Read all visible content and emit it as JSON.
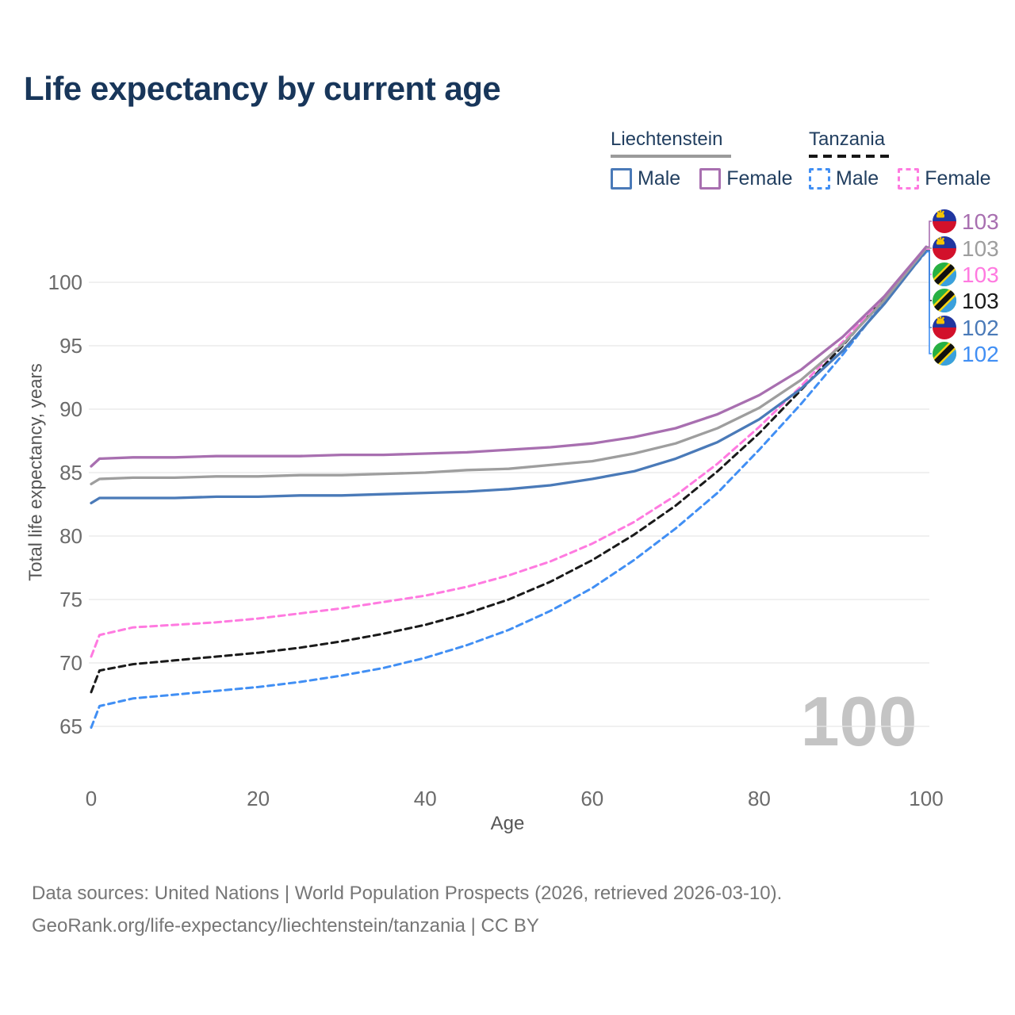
{
  "title": "Life expectancy by current age",
  "legend": {
    "groups": [
      {
        "country": "Liechtenstein",
        "line_style": "solid",
        "items": [
          {
            "label": "Male",
            "color": "#4a7ab8",
            "dashed": false
          },
          {
            "label": "Female",
            "color": "#a86fb0",
            "dashed": false
          }
        ]
      },
      {
        "country": "Tanzania",
        "line_style": "dashed",
        "items": [
          {
            "label": "Male",
            "color": "#418ff4",
            "dashed": true
          },
          {
            "label": "Female",
            "color": "#ff7ae0",
            "dashed": true
          }
        ]
      }
    ]
  },
  "chart_data": {
    "type": "line",
    "title": "Life expectancy by current age",
    "xlabel": "Age",
    "ylabel": "Total life expectancy, years",
    "xlim": [
      0,
      100
    ],
    "ylim": [
      63,
      104
    ],
    "x_ticks": [
      0,
      20,
      40,
      60,
      80,
      100
    ],
    "y_ticks": [
      65,
      70,
      75,
      80,
      85,
      90,
      95,
      100
    ],
    "grid": "horizontal-only",
    "legend_position": "top-right",
    "age_indicator": "100",
    "x": [
      0,
      1,
      5,
      10,
      15,
      20,
      25,
      30,
      35,
      40,
      45,
      50,
      55,
      60,
      65,
      70,
      75,
      80,
      85,
      90,
      95,
      100
    ],
    "series": [
      {
        "name": "Tanzania Male",
        "country": "Tanzania",
        "sex": "Male",
        "color": "#418ff4",
        "dashed": true,
        "values": [
          64.9,
          66.6,
          67.2,
          67.5,
          67.8,
          68.1,
          68.5,
          69.0,
          69.6,
          70.4,
          71.4,
          72.6,
          74.1,
          75.9,
          78.1,
          80.6,
          83.4,
          86.8,
          90.4,
          94.3,
          98.5,
          102.4
        ]
      },
      {
        "name": "Tanzania",
        "country": "Tanzania",
        "sex": "Both",
        "color": "#1a1a1a",
        "dashed": true,
        "values": [
          67.7,
          69.4,
          69.9,
          70.2,
          70.5,
          70.8,
          71.2,
          71.7,
          72.3,
          73.0,
          73.9,
          75.0,
          76.4,
          78.1,
          80.1,
          82.4,
          85.1,
          88.1,
          91.5,
          95.0,
          98.8,
          102.5
        ]
      },
      {
        "name": "Tanzania Female",
        "country": "Tanzania",
        "sex": "Female",
        "color": "#ff7ae0",
        "dashed": true,
        "values": [
          70.5,
          72.2,
          72.8,
          73.0,
          73.2,
          73.5,
          73.9,
          74.3,
          74.8,
          75.3,
          76.0,
          76.9,
          78.0,
          79.4,
          81.1,
          83.2,
          85.7,
          88.6,
          91.8,
          95.3,
          98.9,
          102.6
        ]
      },
      {
        "name": "Liechtenstein Male",
        "country": "Liechtenstein",
        "sex": "Male",
        "color": "#4a7ab8",
        "dashed": false,
        "values": [
          82.6,
          83.0,
          83.0,
          83.0,
          83.1,
          83.1,
          83.2,
          83.2,
          83.3,
          83.4,
          83.5,
          83.7,
          84.0,
          84.5,
          85.1,
          86.1,
          87.4,
          89.2,
          91.6,
          94.6,
          98.3,
          102.5
        ]
      },
      {
        "name": "Liechtenstein",
        "country": "Liechtenstein",
        "sex": "Both",
        "color": "#9e9e9e",
        "dashed": false,
        "values": [
          84.1,
          84.5,
          84.6,
          84.6,
          84.7,
          84.7,
          84.8,
          84.8,
          84.9,
          85.0,
          85.2,
          85.3,
          85.6,
          85.9,
          86.5,
          87.3,
          88.5,
          90.1,
          92.3,
          95.1,
          98.6,
          102.7
        ]
      },
      {
        "name": "Liechtenstein Female",
        "country": "Liechtenstein",
        "sex": "Female",
        "color": "#a86fb0",
        "dashed": false,
        "values": [
          85.5,
          86.1,
          86.2,
          86.2,
          86.3,
          86.3,
          86.3,
          86.4,
          86.4,
          86.5,
          86.6,
          86.8,
          87.0,
          87.3,
          87.8,
          88.5,
          89.6,
          91.1,
          93.1,
          95.7,
          98.9,
          102.8
        ]
      }
    ],
    "end_labels": [
      {
        "series": "Liechtenstein Female",
        "flag": "liechtenstein",
        "value": "103",
        "color": "#a86fb0"
      },
      {
        "series": "Liechtenstein",
        "flag": "liechtenstein",
        "value": "103",
        "color": "#9e9e9e"
      },
      {
        "series": "Tanzania Female",
        "flag": "tanzania",
        "value": "103",
        "color": "#ff7ae0"
      },
      {
        "series": "Tanzania",
        "flag": "tanzania",
        "value": "103",
        "color": "#1a1a1a"
      },
      {
        "series": "Liechtenstein Male",
        "flag": "liechtenstein",
        "value": "102",
        "color": "#4a7ab8"
      },
      {
        "series": "Tanzania Male",
        "flag": "tanzania",
        "value": "102",
        "color": "#418ff4"
      }
    ]
  },
  "footer": {
    "line1": "Data sources: United Nations | World Population Prospects (2026, retrieved 2026-03-10).",
    "line2": "GeoRank.org/life-expectancy/liechtenstein/tanzania | CC BY"
  }
}
